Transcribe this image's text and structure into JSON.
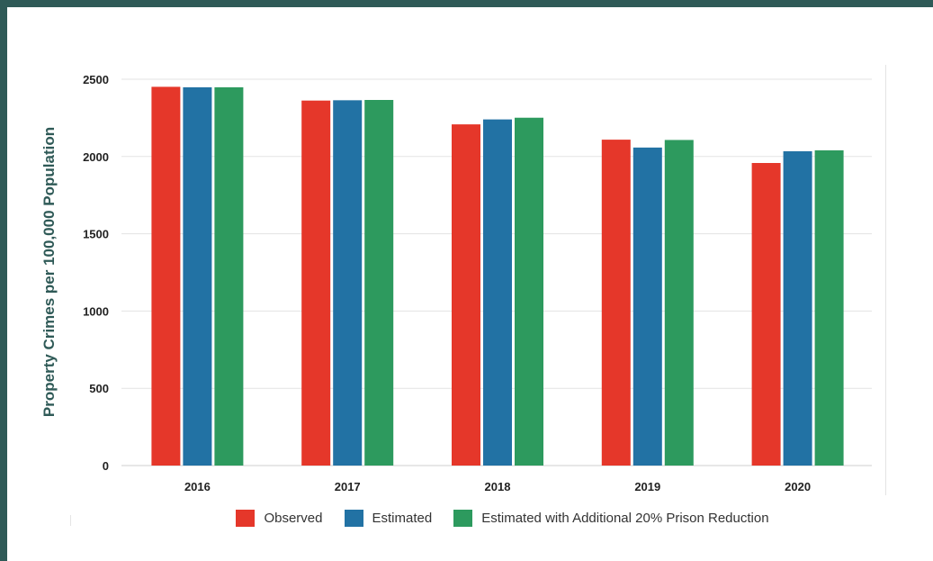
{
  "chart_data": {
    "type": "bar",
    "ylabel": "Property Crimes per 100,000 Population",
    "xlabel": "",
    "ylim": [
      0,
      2500
    ],
    "yticks": [
      0,
      500,
      1000,
      1500,
      2000,
      2500
    ],
    "grid": true,
    "legend_position": "bottom",
    "categories": [
      "2016",
      "2017",
      "2018",
      "2019",
      "2020"
    ],
    "series": [
      {
        "name": "Observed",
        "color": "#e5372a",
        "values": [
          2451,
          2362,
          2208,
          2109,
          1958
        ]
      },
      {
        "name": "Estimated",
        "color": "#2272a4",
        "values": [
          2448,
          2364,
          2240,
          2058,
          2034
        ]
      },
      {
        "name": "Estimated with Additional 20% Prison Reduction",
        "color": "#2d9a5e",
        "values": [
          2448,
          2366,
          2251,
          2107,
          2040
        ]
      }
    ]
  }
}
